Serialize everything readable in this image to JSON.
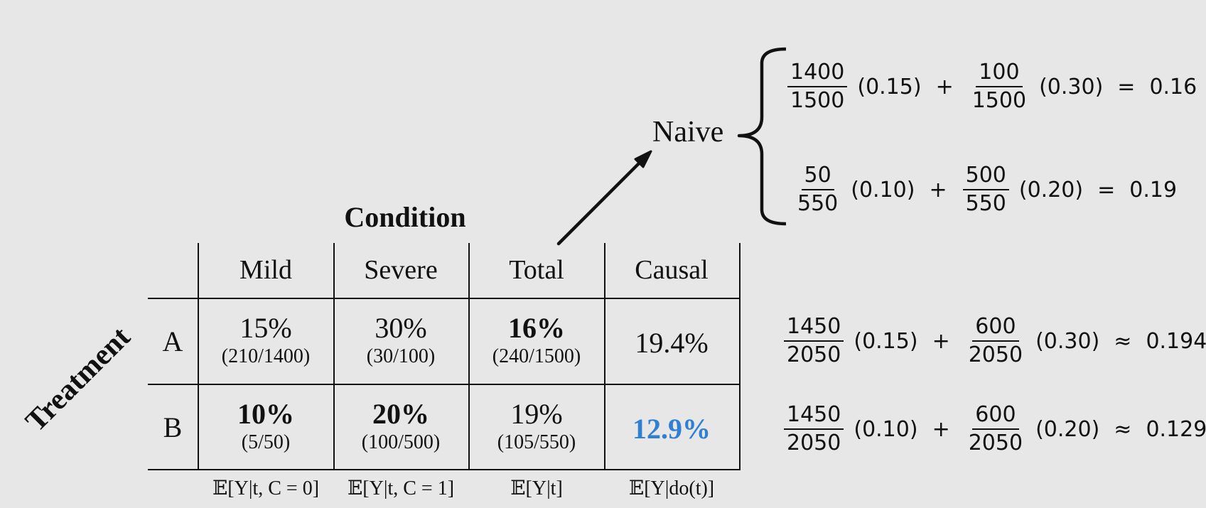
{
  "condition_label": "Condition",
  "treatment_label": "Treatment",
  "naive_label": "Naive",
  "columns": [
    "Mild",
    "Severe",
    "Total",
    "Causal"
  ],
  "rows": [
    {
      "label": "A",
      "mild": {
        "pct": "15%",
        "frac": "(210/1400)"
      },
      "severe": {
        "pct": "30%",
        "frac": "(30/100)"
      },
      "total": {
        "pct": "16%",
        "frac": "(240/1500)"
      },
      "causal": "19.4%"
    },
    {
      "label": "B",
      "mild": {
        "pct": "10%",
        "frac": "(5/50)"
      },
      "severe": {
        "pct": "20%",
        "frac": "(100/500)"
      },
      "total": {
        "pct": "19%",
        "frac": "(105/550)"
      },
      "causal": "12.9%"
    }
  ],
  "footers": [
    "𝔼[Y|t, C = 0]",
    "𝔼[Y|t, C = 1]",
    "𝔼[Y|t]",
    "𝔼[Y|do(t)]"
  ],
  "naive_equations": [
    {
      "n1": "1400",
      "d1": "1500",
      "p1": "(0.15)",
      "op": "+",
      "n2": "100",
      "d2": "1500",
      "p2": "(0.30)",
      "rel": "=",
      "result": "0.16"
    },
    {
      "n1": "50",
      "d1": "550",
      "p1": "(0.10)",
      "op": "+",
      "n2": "500",
      "d2": "550",
      "p2": "(0.20)",
      "rel": "=",
      "result": "0.19"
    }
  ],
  "causal_equations": [
    {
      "n1": "1450",
      "d1": "2050",
      "p1": "(0.15)",
      "op": "+",
      "n2": "600",
      "d2": "2050",
      "p2": "(0.30)",
      "rel": "≈",
      "result": "0.194"
    },
    {
      "n1": "1450",
      "d1": "2050",
      "p1": "(0.10)",
      "op": "+",
      "n2": "600",
      "d2": "2050",
      "p2": "(0.20)",
      "rel": "≈",
      "result": "0.129"
    }
  ],
  "colors": {
    "highlight": "#2f7fd2",
    "background": "#e7e7e7",
    "ink": "#111111"
  }
}
